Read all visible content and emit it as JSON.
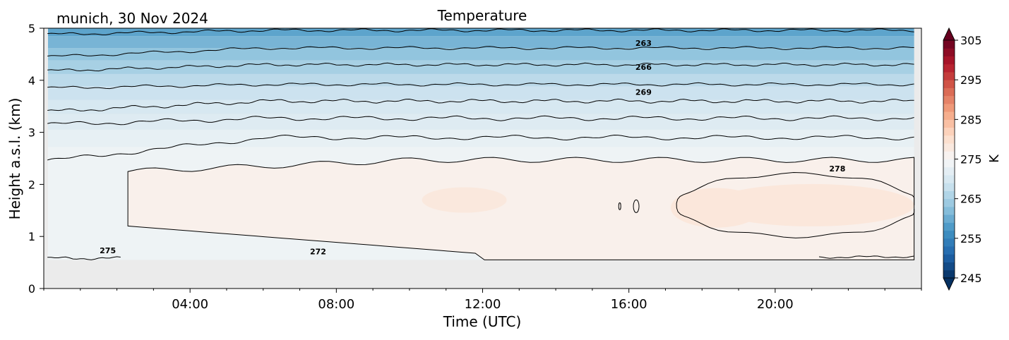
{
  "header": {
    "station": "munich, 30 Nov 2024",
    "title": "Temperature"
  },
  "chart_data": {
    "type": "heatmap",
    "title": "Temperature",
    "xlabel": "Time (UTC)",
    "ylabel": "Height a.s.l. (km)",
    "colorbar_label": "K",
    "xlim_hours": [
      0,
      24
    ],
    "ylim": [
      0,
      5
    ],
    "x_ticks": [
      {
        "hour": 4,
        "label": "04:00"
      },
      {
        "hour": 8,
        "label": "08:00"
      },
      {
        "hour": 12,
        "label": "12:00"
      },
      {
        "hour": 16,
        "label": "16:00"
      },
      {
        "hour": 20,
        "label": "20:00"
      }
    ],
    "y_ticks": [
      {
        "value": 0,
        "label": "0"
      },
      {
        "value": 1,
        "label": "1"
      },
      {
        "value": 2,
        "label": "2"
      },
      {
        "value": 3,
        "label": "3"
      },
      {
        "value": 4,
        "label": "4"
      },
      {
        "value": 5,
        "label": "5"
      }
    ],
    "colorbar_ticks": [
      {
        "value": 245,
        "label": "245"
      },
      {
        "value": 255,
        "label": "255"
      },
      {
        "value": 265,
        "label": "265"
      },
      {
        "value": 275,
        "label": "275"
      },
      {
        "value": 285,
        "label": "285"
      },
      {
        "value": 295,
        "label": "295"
      },
      {
        "value": 305,
        "label": "305"
      }
    ],
    "colorbar_range": [
      245,
      305
    ],
    "colormap": "RdBu_r",
    "no_data_below_km": 0.55,
    "contour_labels": [
      {
        "text": "263",
        "hour": 16.4,
        "km": 4.66
      },
      {
        "text": "266",
        "hour": 16.4,
        "km": 4.2
      },
      {
        "text": "269",
        "hour": 16.4,
        "km": 3.72
      },
      {
        "text": "278",
        "hour": 21.7,
        "km": 2.25
      },
      {
        "text": "275",
        "hour": 1.75,
        "km": 0.68
      },
      {
        "text": "272",
        "hour": 7.5,
        "km": 0.66
      }
    ],
    "grid": false
  }
}
